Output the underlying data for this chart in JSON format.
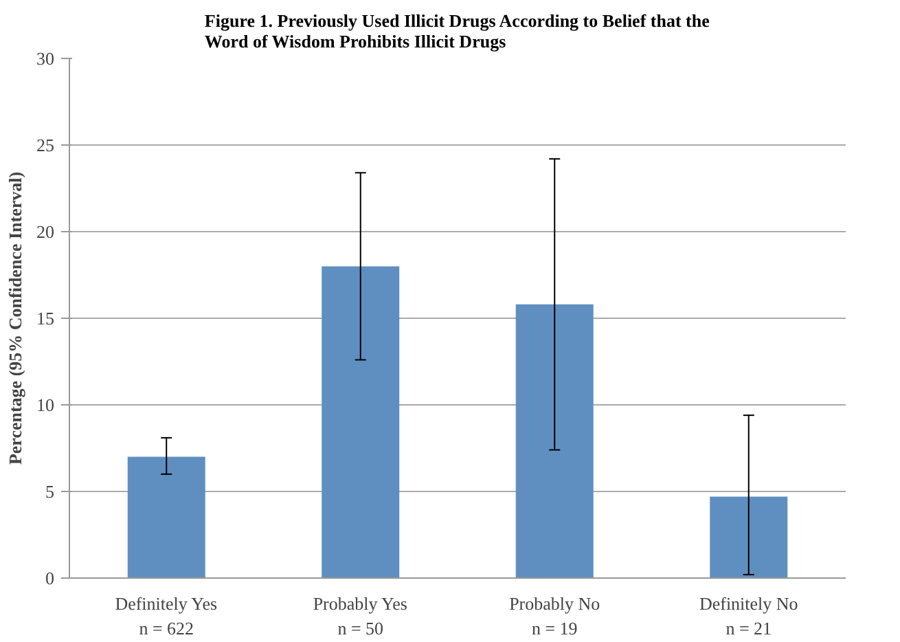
{
  "chart_data": {
    "type": "bar",
    "title": "Figure 1. Previously Used Illicit Drugs According to Belief that the\nWord of Wisdom Prohibits Illicit Drugs",
    "ylabel": "Percentage (95% Confidence Interval)",
    "categories": [
      "Definitely Yes\nn = 622",
      "Probably Yes\nn = 50",
      "Probably No\nn = 19",
      "Definitely No\nn = 21"
    ],
    "values": [
      7.0,
      18.0,
      15.8,
      4.7
    ],
    "errors": [
      [
        6.0,
        8.1
      ],
      [
        12.6,
        23.4
      ],
      [
        7.4,
        24.2
      ],
      [
        0.2,
        9.4
      ]
    ],
    "color": "#5f8fc0",
    "ylim": [
      0,
      30
    ],
    "yticks": [
      0,
      5,
      10,
      15,
      20,
      25,
      30
    ],
    "grid": "y"
  }
}
